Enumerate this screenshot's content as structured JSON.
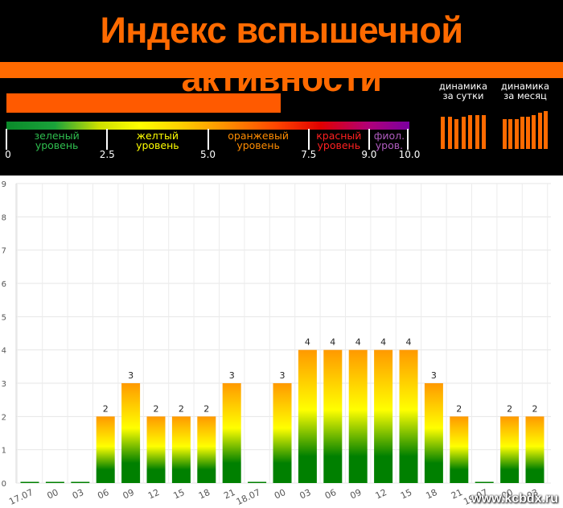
{
  "header": {
    "title": "Индекс вспышечной активности",
    "index_value": 6.8,
    "scale": {
      "min": 0,
      "max": 10,
      "ticks": [
        "0",
        "2.5",
        "5.0",
        "7.5",
        "9.0",
        "10.0"
      ],
      "tick_values": [
        0,
        2.5,
        5.0,
        7.5,
        9.0,
        10.0
      ],
      "levels": [
        {
          "label": "зеленый\nуровень",
          "color": "#2fbf4f",
          "center": 1.25
        },
        {
          "label": "желтый\nуровень",
          "color": "#ffff00",
          "center": 3.75
        },
        {
          "label": "оранжевый\nуровень",
          "color": "#ff8c00",
          "center": 6.25
        },
        {
          "label": "красный\nуровень",
          "color": "#ff2020",
          "center": 8.25
        },
        {
          "label": "фиол.\nуров.",
          "color": "#b05cc0",
          "center": 9.5
        }
      ]
    },
    "dynamics_day": {
      "label": "динамика\nза сутки",
      "values": [
        0.8,
        0.8,
        0.75,
        0.8,
        0.85,
        0.85,
        0.85
      ]
    },
    "dynamics_month": {
      "label": "динамика\nза месяц",
      "values": [
        0.75,
        0.75,
        0.75,
        0.8,
        0.8,
        0.85,
        0.9,
        0.95
      ]
    },
    "colors": {
      "accent": "#ff6a00",
      "background": "#000000"
    }
  },
  "chart_data": {
    "type": "bar",
    "categories": [
      "17.07",
      "00",
      "03",
      "06",
      "09",
      "12",
      "15",
      "18",
      "21",
      "18.07",
      "00",
      "03",
      "06",
      "09",
      "12",
      "15",
      "18",
      "21",
      "19.07",
      "00",
      "03"
    ],
    "values": [
      0,
      0,
      0,
      2,
      3,
      2,
      2,
      2,
      3,
      0,
      3,
      4,
      4,
      4,
      4,
      4,
      3,
      2,
      0,
      2,
      2
    ],
    "data_labels": [
      "",
      "",
      "",
      "2",
      "3",
      "2",
      "2",
      "2",
      "3",
      "",
      "3",
      "4",
      "4",
      "4",
      "4",
      "4",
      "3",
      "2",
      "",
      "2",
      "2"
    ],
    "ylim": [
      0,
      9
    ],
    "yticks": [
      "0",
      "1",
      "2",
      "3",
      "4",
      "5",
      "6",
      "7",
      "8",
      "9"
    ],
    "grid": true,
    "bar_colors": {
      "top": "#ff9900",
      "middle": "#ffff00",
      "bottom": "#008000"
    }
  },
  "watermark": "www.kcbdx.ru"
}
